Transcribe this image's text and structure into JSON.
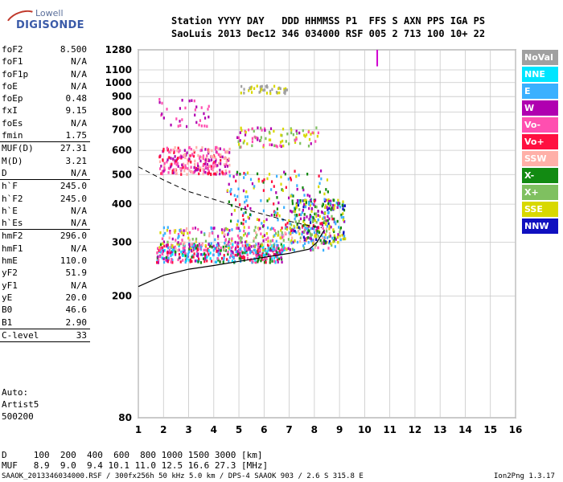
{
  "logo": {
    "line1": "Lowell",
    "line2": "DIGISONDE"
  },
  "header": {
    "row1": "Station YYYY DAY   DDD HHMMSS P1  FFS S AXN PPS IGA PS",
    "row2": "SaoLuis 2013 Dec12 346 034000 RSF 005 2 713 100 10+ 22"
  },
  "params": {
    "group1": [
      {
        "name": "foF2",
        "value": "8.500"
      },
      {
        "name": "foF1",
        "value": "N/A"
      },
      {
        "name": "foF1p",
        "value": "N/A"
      },
      {
        "name": "foE",
        "value": "N/A"
      },
      {
        "name": "foEp",
        "value": "0.48"
      },
      {
        "name": "fxI",
        "value": "9.15"
      },
      {
        "name": "foEs",
        "value": "N/A"
      },
      {
        "name": "fmin",
        "value": "1.75"
      }
    ],
    "group2": [
      {
        "name": "MUF(D)",
        "value": "27.31"
      },
      {
        "name": "M(D)",
        "value": "3.21"
      },
      {
        "name": "D",
        "value": "N/A"
      }
    ],
    "group3": [
      {
        "name": "h`F",
        "value": "245.0"
      },
      {
        "name": "h`F2",
        "value": "245.0"
      },
      {
        "name": "h`E",
        "value": "N/A"
      },
      {
        "name": "h`Es",
        "value": "N/A"
      }
    ],
    "group4": [
      {
        "name": "hmF2",
        "value": "296.0"
      },
      {
        "name": "hmF1",
        "value": "N/A"
      },
      {
        "name": "hmE",
        "value": "110.0"
      },
      {
        "name": "yF2",
        "value": "51.9"
      },
      {
        "name": "yF1",
        "value": "N/A"
      },
      {
        "name": "yE",
        "value": "20.0"
      },
      {
        "name": "B0",
        "value": "46.6"
      },
      {
        "name": "B1",
        "value": "2.90"
      }
    ],
    "group5": [
      {
        "name": "C-level",
        "value": "33"
      }
    ]
  },
  "auto": {
    "line1": "Auto:",
    "line2": "Artist5",
    "line3": "500200"
  },
  "bottom": {
    "d_row": "D     100  200  400  600  800 1000 1500 3000 [km]",
    "muf_row": "MUF   8.9  9.0  9.4 10.1 11.0 12.5 16.6 27.3 [MHz]",
    "footer_left": "SAAOK_2013346034000.RSF / 300fx256h 50 kHz 5.0 km / DPS-4 SAAOK 903 / 2.6 S 315.8 E",
    "footer_right": "Ion2Png 1.3.17"
  },
  "legend": [
    {
      "label": "NoVal",
      "color": "#a0a0a0"
    },
    {
      "label": "NNE",
      "color": "#00e5ff"
    },
    {
      "label": "E",
      "color": "#3ab0ff"
    },
    {
      "label": "W",
      "color": "#b000b0"
    },
    {
      "label": "Vo-",
      "color": "#ff4fb0"
    },
    {
      "label": "Vo+",
      "color": "#ff1040"
    },
    {
      "label": "SSW",
      "color": "#ffb0a8"
    },
    {
      "label": "X-",
      "color": "#128a12"
    },
    {
      "label": "X+",
      "color": "#7fc060"
    },
    {
      "label": "SSE",
      "color": "#d8d800"
    },
    {
      "label": "NNW",
      "color": "#1010c0"
    }
  ],
  "chart_data": {
    "type": "scatter",
    "xlabel": "",
    "ylabel": "",
    "xlim": [
      1,
      16
    ],
    "ylim": [
      80,
      1280
    ],
    "yscale": "log",
    "x_ticks": [
      "1",
      "2",
      "3",
      "4",
      "5",
      "6",
      "7",
      "8",
      "9",
      "10",
      "11",
      "12",
      "13",
      "14",
      "15",
      "16"
    ],
    "y_ticks": [
      "80",
      "200",
      "300",
      "400",
      "500",
      "600",
      "700",
      "800",
      "900",
      "1000",
      "1100",
      "1280"
    ],
    "grid": true,
    "profile": {
      "x": [
        1.0,
        2.0,
        3.0,
        4.0,
        5.0,
        6.0,
        7.0,
        7.8,
        8.1,
        8.4
      ],
      "y": [
        215,
        234,
        245,
        252,
        260,
        268,
        276,
        285,
        300,
        330
      ]
    },
    "profile_upper": {
      "x": [
        1.0,
        2.0,
        3.0,
        4.0,
        5.0,
        6.0,
        7.0,
        7.8,
        8.3
      ],
      "y": [
        530,
        480,
        440,
        415,
        390,
        370,
        352,
        340,
        335
      ]
    },
    "clusters": [
      {
        "x": [
          1.7,
          6.8
        ],
        "y": [
          260,
          300
        ],
        "n": 420,
        "colors": [
          "#ff1040",
          "#ff4fb0",
          "#b000b0",
          "#128a12",
          "#00e5ff",
          "#3ab0ff"
        ]
      },
      {
        "x": [
          1.8,
          8.8
        ],
        "y": [
          285,
          340
        ],
        "n": 320,
        "colors": [
          "#b000b0",
          "#ff4fb0",
          "#d8d800",
          "#7fc060",
          "#3ab0ff",
          "#ffb0a8"
        ]
      },
      {
        "x": [
          7.0,
          9.2
        ],
        "y": [
          300,
          420
        ],
        "n": 220,
        "colors": [
          "#128a12",
          "#7fc060",
          "#3ab0ff",
          "#d8d800",
          "#1010c0",
          "#b000b0"
        ]
      },
      {
        "x": [
          4.5,
          8.7
        ],
        "y": [
          330,
          520
        ],
        "n": 180,
        "colors": [
          "#b000b0",
          "#ff1040",
          "#128a12",
          "#d8d800",
          "#3ab0ff"
        ]
      },
      {
        "x": [
          1.8,
          4.6
        ],
        "y": [
          505,
          620
        ],
        "n": 260,
        "colors": [
          "#ff4fb0",
          "#ff1040",
          "#b000b0",
          "#ffb0a8"
        ]
      },
      {
        "x": [
          4.9,
          8.2
        ],
        "y": [
          620,
          720
        ],
        "n": 90,
        "colors": [
          "#d8d800",
          "#7fc060",
          "#ff4fb0",
          "#b000b0"
        ]
      },
      {
        "x": [
          5.0,
          6.9
        ],
        "y": [
          930,
          990
        ],
        "n": 45,
        "colors": [
          "#d8d800",
          "#a0a0a0"
        ]
      },
      {
        "x": [
          1.8,
          3.9
        ],
        "y": [
          720,
          900
        ],
        "n": 35,
        "colors": [
          "#b000b0",
          "#ff4fb0"
        ]
      }
    ],
    "vertical_trace": {
      "x": 10.5,
      "y": [
        1130,
        1280
      ],
      "color": "#d000d0"
    }
  }
}
